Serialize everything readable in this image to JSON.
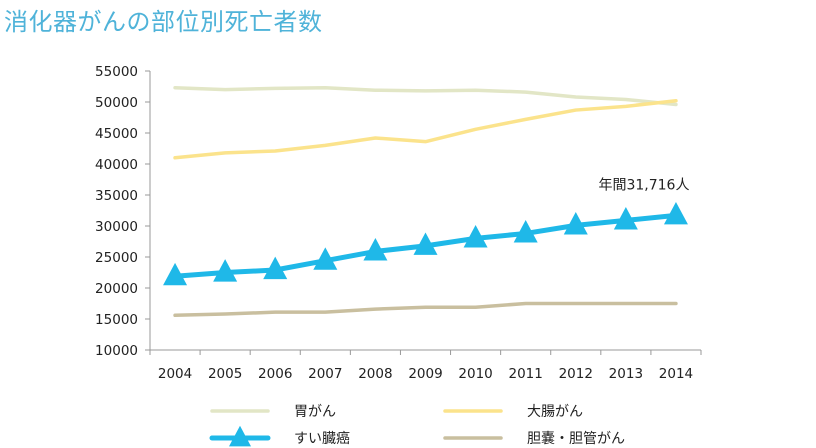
{
  "chart_data": {
    "type": "line",
    "title": "消化器がんの部位別死亡者数",
    "xlabel": "",
    "ylabel": "",
    "x": [
      2004,
      2005,
      2006,
      2007,
      2008,
      2009,
      2010,
      2011,
      2012,
      2013,
      2014
    ],
    "ylim": [
      10000,
      55000
    ],
    "yticks": [
      10000,
      15000,
      20000,
      25000,
      30000,
      35000,
      40000,
      45000,
      50000,
      55000
    ],
    "series": [
      {
        "name": "胃がん",
        "color": "#e2e6c6",
        "marker": "none",
        "values": [
          52300,
          52000,
          52200,
          52300,
          51900,
          51800,
          51900,
          51600,
          50800,
          50400,
          49600
        ]
      },
      {
        "name": "大腸がん",
        "color": "#fbe38c",
        "marker": "none",
        "values": [
          41000,
          41800,
          42100,
          43000,
          44200,
          43600,
          45600,
          47200,
          48700,
          49300,
          50200
        ]
      },
      {
        "name": "すい臓癌",
        "color": "#1fb8e8",
        "marker": "triangle",
        "values": [
          21900,
          22500,
          22900,
          24400,
          25900,
          26800,
          28000,
          28800,
          30100,
          30900,
          31716
        ]
      },
      {
        "name": "胆嚢・胆管がん",
        "color": "#c9bf9f",
        "marker": "none",
        "values": [
          15600,
          15800,
          16100,
          16100,
          16600,
          16900,
          16900,
          17500,
          17500,
          17500,
          17500
        ]
      }
    ],
    "annotation": {
      "text": "年間31,716人",
      "series": 2,
      "index": 10
    },
    "legend_position": "bottom",
    "grid": false
  }
}
